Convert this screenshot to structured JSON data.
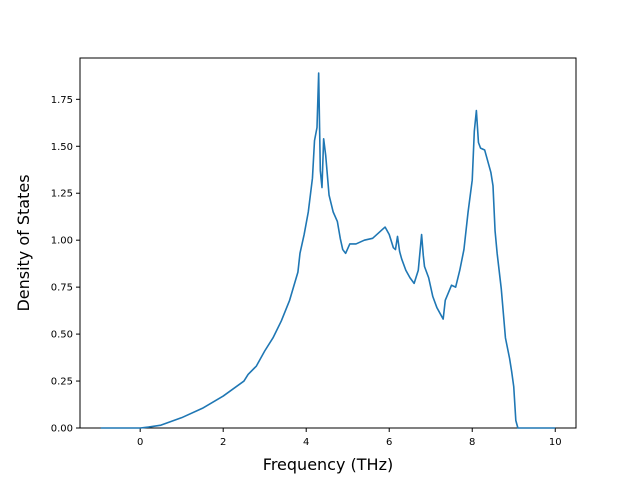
{
  "chart_data": {
    "type": "line",
    "title": "",
    "xlabel": "Frequency (THz)",
    "ylabel": "Density of States",
    "xlim": [
      -1.45,
      10.5
    ],
    "ylim": [
      0,
      1.97
    ],
    "grid": false,
    "xticks": [
      0,
      2,
      4,
      6,
      8,
      10
    ],
    "xtick_labels": [
      "0",
      "2",
      "4",
      "6",
      "8",
      "10"
    ],
    "yticks": [
      0,
      0.25,
      0.5,
      0.75,
      1.0,
      1.25,
      1.5,
      1.75
    ],
    "ytick_labels": [
      "0.00",
      "0.25",
      "0.50",
      "0.75",
      "1.00",
      "1.25",
      "1.50",
      "1.75"
    ],
    "line_color": "#1f77b4",
    "series": [
      {
        "x": [
          -0.95,
          -0.5,
          0,
          0.2,
          0.5,
          1.0,
          1.5,
          2.0,
          2.5,
          2.6,
          2.8,
          3.0,
          3.2,
          3.4,
          3.6,
          3.8,
          3.85,
          3.95,
          4.05,
          4.15,
          4.2,
          4.26,
          4.3,
          4.34,
          4.38,
          4.42,
          4.47,
          4.55,
          4.65,
          4.75,
          4.82,
          4.88,
          4.95,
          5.05,
          5.2,
          5.3,
          5.4,
          5.6,
          5.75,
          5.9,
          6.0,
          6.1,
          6.15,
          6.2,
          6.25,
          6.3,
          6.4,
          6.5,
          6.6,
          6.7,
          6.78,
          6.82,
          6.85,
          6.95,
          7.05,
          7.15,
          7.25,
          7.3,
          7.35,
          7.5,
          7.6,
          7.7,
          7.8,
          7.9,
          8.0,
          8.05,
          8.1,
          8.15,
          8.2,
          8.3,
          8.4,
          8.45,
          8.5,
          8.55,
          8.6,
          8.7,
          8.8,
          8.9,
          8.95,
          9.0,
          9.05,
          9.1,
          9.2,
          10.0
        ],
        "y": [
          0.0,
          0.0,
          0.0,
          0.005,
          0.015,
          0.055,
          0.105,
          0.17,
          0.25,
          0.285,
          0.33,
          0.41,
          0.48,
          0.57,
          0.68,
          0.83,
          0.93,
          1.03,
          1.15,
          1.33,
          1.53,
          1.6,
          1.89,
          1.37,
          1.28,
          1.54,
          1.45,
          1.24,
          1.15,
          1.1,
          1.01,
          0.95,
          0.93,
          0.98,
          0.98,
          0.99,
          1.0,
          1.01,
          1.04,
          1.07,
          1.03,
          0.96,
          0.95,
          1.02,
          0.94,
          0.9,
          0.84,
          0.8,
          0.77,
          0.84,
          1.03,
          0.92,
          0.86,
          0.8,
          0.7,
          0.64,
          0.6,
          0.58,
          0.68,
          0.76,
          0.75,
          0.84,
          0.95,
          1.15,
          1.32,
          1.58,
          1.69,
          1.52,
          1.49,
          1.48,
          1.4,
          1.36,
          1.29,
          1.05,
          0.93,
          0.74,
          0.48,
          0.37,
          0.3,
          0.22,
          0.04,
          0.0,
          0.0,
          0.0
        ]
      }
    ]
  }
}
